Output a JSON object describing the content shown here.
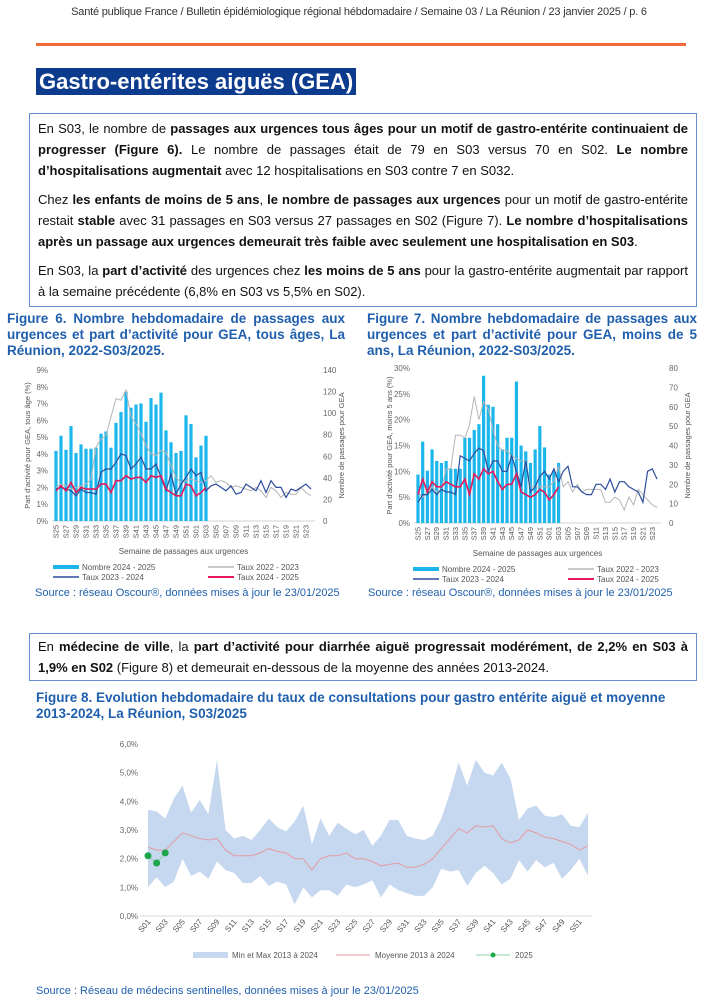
{
  "header": "Santé publique France / Bulletin épidémiologique régional hébdomadaire / Semaine 03 / La Réunion / 23 janvier 2025 / p. 6",
  "colors": {
    "accent_rule": "#F26B3A",
    "title_bg": "#0D3C8E",
    "figure_title": "#1F5FAD",
    "bars": "#1AB6EC",
    "taux_2022_2023": "#B5B5B5",
    "taux_2023_2024": "#2C4C9C",
    "taux_2024_2025": "#E5195A",
    "band": "#C5D8F0",
    "mean": "#E59AA2",
    "points_2025": "#1DA64A"
  },
  "section_title": "Gastro-entérites aiguës (GEA)",
  "summary": [
    [
      {
        "t": "En S03, le nombre de "
      },
      {
        "t": "passages aux urgences tous âges pour un motif de gastro-entérite continuaient de progresser (Figure 6).",
        "b": true
      },
      {
        "t": " Le nombre de passages était de 79 en S03 versus 70 en S02. "
      },
      {
        "t": "Le nombre d’hospitalisations augmentait",
        "b": true
      },
      {
        "t": " avec 12 hospitalisations en S03 contre 7 en S032."
      }
    ],
    [
      {
        "t": "Chez "
      },
      {
        "t": "les enfants de moins de 5 ans",
        "b": true
      },
      {
        "t": ", "
      },
      {
        "t": "le nombre de passages aux urgences",
        "b": true
      },
      {
        "t": " pour un motif de gastro-entérite restait "
      },
      {
        "t": "stable",
        "b": true
      },
      {
        "t": " avec 31 passages en S03 versus 27 passages en S02 (Figure 7). "
      },
      {
        "t": "Le nombre d’hospitalisations après un passage aux urgences demeurait très faible avec seulement une hospitalisation en S03",
        "b": true
      },
      {
        "t": "."
      }
    ],
    [
      {
        "t": "En S03, la "
      },
      {
        "t": "part d’activité",
        "b": true
      },
      {
        "t": " des urgences chez "
      },
      {
        "t": "les moins de 5 ans",
        "b": true
      },
      {
        "t": " pour la gastro-entérite augmentait par rapport à la semaine précédente (6,8% en S03 vs 5,5% en S02)."
      }
    ]
  ],
  "ville": [
    [
      {
        "t": "En "
      },
      {
        "t": "médecine de ville",
        "b": true
      },
      {
        "t": ", la "
      },
      {
        "t": "part d’activité pour diarrhée aiguë progressait modérément, de 2,2% en S03 à 1,9% en S02",
        "b": true
      },
      {
        "t": " (Figure 8) et demeurait en-dessous de la moyenne des années 2013-2024."
      }
    ]
  ],
  "fig6": {
    "title": "Figure 6. Nombre hebdomadaire de passages aux urgences et part d’activité pour GEA, tous âges, La Réunion, 2022-S03/2025.",
    "source": "Source : réseau Oscour®, données mises à jour le 23/01/2025"
  },
  "fig7": {
    "title": "Figure 7. Nombre hebdomadaire de passages aux urgences et part d’activité pour GEA, moins de 5 ans, La Réunion, 2022-S03/2025.",
    "source": "Source : réseau Oscour®, données mises à jour le 23/01/2025"
  },
  "fig8": {
    "title": "Figure 8. Evolution hebdomadaire du taux de consultations pour gastro entérite aiguë et moyenne 2013-2024, La Réunion, S03/2025",
    "source": "Source : Réseau de médecins sentinelles, données mises à jour le 23/01/2025"
  },
  "chart_data": [
    {
      "type": "bar+line",
      "weeks": [
        "S25",
        "S26",
        "S27",
        "S28",
        "S29",
        "S30",
        "S31",
        "S32",
        "S33",
        "S34",
        "S35",
        "S36",
        "S37",
        "S38",
        "S39",
        "S40",
        "S41",
        "S42",
        "S43",
        "S44",
        "S45",
        "S46",
        "S47",
        "S48",
        "S49",
        "S50",
        "S51",
        "S52",
        "S01",
        "S02",
        "S03",
        "S04",
        "S05",
        "S06",
        "S07",
        "S08",
        "S09",
        "S10",
        "S11",
        "S12",
        "S13",
        "S14",
        "S15",
        "S16",
        "S17",
        "S18",
        "S19",
        "S20",
        "S21",
        "S22",
        "S23",
        "S24"
      ],
      "xlabel": "Semaine de passages aux urgences",
      "ylabel": "Part d'activité pour GEA, tous âge (%)",
      "y2label": "Nombre de passages pour GEA",
      "ylim": [
        0,
        9
      ],
      "yticks": [
        "0%",
        "1%",
        "2%",
        "3%",
        "4%",
        "5%",
        "6%",
        "7%",
        "8%",
        "9%"
      ],
      "y2lim": [
        0,
        140
      ],
      "y2ticks": [
        "0",
        "20",
        "40",
        "60",
        "80",
        "100",
        "120",
        "140"
      ],
      "bars": {
        "name": "Nombre 2024 - 2025",
        "values": [
          65,
          79,
          66,
          88,
          63,
          71,
          67,
          67,
          68,
          81,
          83,
          68,
          91,
          101,
          120,
          105,
          108,
          109,
          92,
          114,
          108,
          119,
          84,
          73,
          63,
          65,
          98,
          90,
          59,
          70,
          79
        ]
      },
      "series": [
        {
          "name": "Taux 2022 - 2023",
          "values": [
            2.0,
            2.2,
            2.1,
            1.9,
            2.0,
            2.1,
            2.2,
            2.5,
            4.4,
            4.9,
            5.1,
            6.2,
            7.3,
            7.2,
            7.8,
            6.2,
            5.8,
            5.2,
            4.5,
            4.0,
            3.9,
            4.2,
            4.1,
            3.3,
            2.6,
            2.3,
            2.4,
            2.5,
            2.4,
            2.3,
            2.4,
            2.7,
            2.3,
            2.4,
            2.3,
            2.0,
            2.1,
            2.0,
            1.9,
            1.8,
            2.0,
            1.8,
            1.4,
            2.0,
            1.8,
            1.4,
            1.7,
            1.6,
            1.6,
            2.0,
            1.7,
            1.5
          ]
        },
        {
          "name": "Taux 2023 - 2024",
          "values": [
            1.9,
            2.0,
            1.9,
            1.8,
            1.5,
            1.9,
            1.7,
            1.7,
            1.6,
            2.9,
            3.1,
            3.1,
            3.5,
            4.0,
            3.9,
            3.1,
            3.4,
            3.8,
            3.1,
            3.1,
            3.4,
            2.6,
            1.8,
            2.8,
            1.6,
            2.2,
            2.6,
            3.1,
            2.7,
            2.9,
            1.8,
            2.1,
            2.2,
            2.0,
            1.8,
            2.1,
            1.6,
            1.7,
            2.2,
            2.0,
            1.8,
            2.4,
            1.7,
            2.4,
            2.0,
            2.0,
            1.4,
            1.9,
            1.8,
            2.0,
            2.2,
            1.9
          ]
        },
        {
          "name": "Taux 2024 - 2025",
          "values": [
            1.8,
            2.1,
            1.8,
            2.3,
            1.7,
            2.0,
            1.9,
            1.9,
            1.9,
            2.2,
            2.2,
            1.7,
            2.4,
            2.4,
            2.7,
            2.5,
            2.6,
            2.6,
            2.3,
            2.7,
            2.6,
            2.7,
            1.9,
            1.7,
            1.5,
            1.5,
            2.2,
            2.1,
            1.5,
            1.7,
            2.0
          ]
        }
      ]
    },
    {
      "type": "bar+line",
      "weeks": [
        "S25",
        "S26",
        "S27",
        "S28",
        "S29",
        "S30",
        "S31",
        "S32",
        "S33",
        "S34",
        "S35",
        "S36",
        "S37",
        "S38",
        "S39",
        "S40",
        "S41",
        "S42",
        "S43",
        "S44",
        "S45",
        "S46",
        "S47",
        "S48",
        "S49",
        "S50",
        "S51",
        "S52",
        "S01",
        "S02",
        "S03",
        "S04",
        "S05",
        "S06",
        "S07",
        "S08",
        "S09",
        "S10",
        "S11",
        "S12",
        "S13",
        "S14",
        "S15",
        "S16",
        "S17",
        "S18",
        "S19",
        "S20",
        "S21",
        "S22",
        "S23",
        "S24"
      ],
      "xlabel": "Semaine de passages aux urgences",
      "ylabel": "Part d'activité pour GEA, moins 5 ans (%)",
      "y2label": "Nombre de passages pour GEA",
      "ylim": [
        0,
        30
      ],
      "yticks": [
        "0%",
        "5%",
        "10%",
        "15%",
        "20%",
        "25%",
        "30%"
      ],
      "y2lim": [
        0,
        80
      ],
      "y2ticks": [
        "0",
        "10",
        "20",
        "30",
        "40",
        "50",
        "60",
        "70",
        "80"
      ],
      "bars": {
        "name": "Nombre 2024 - 2025",
        "values": [
          25,
          42,
          27,
          38,
          32,
          31,
          32,
          28,
          28,
          28,
          44,
          44,
          48,
          51,
          76,
          61,
          60,
          51,
          38,
          44,
          44,
          73,
          40,
          37,
          31,
          38,
          50,
          39,
          25,
          27,
          31
        ]
      },
      "series": [
        {
          "name": "Taux 2022 - 2023",
          "values": [
            6,
            5,
            6,
            7,
            6,
            6.5,
            10.5,
            10.5,
            17,
            17,
            16.5,
            19,
            24.5,
            20,
            23.5,
            22,
            18,
            15,
            14,
            14,
            13,
            12.5,
            12,
            12,
            7,
            7,
            7,
            7,
            7,
            8,
            11,
            7,
            8,
            6,
            7.5,
            6,
            6.5,
            6.5,
            6.5,
            6.5,
            4,
            4,
            5,
            4.5,
            2.5,
            5,
            3.5,
            6.5,
            5.5,
            4.5,
            3.5,
            3
          ]
        },
        {
          "name": "Taux 2023 - 2024",
          "values": [
            4,
            5.5,
            5.5,
            6.5,
            5.5,
            6.5,
            6,
            6,
            5.5,
            13,
            12.5,
            12,
            13.5,
            14.5,
            14,
            10,
            12,
            12,
            10,
            10,
            13,
            10,
            7,
            12,
            6,
            7,
            9,
            10,
            8.5,
            10.5,
            8,
            10,
            11,
            7,
            7,
            6,
            5.5,
            5.5,
            7.5,
            7.5,
            6.5,
            8.5,
            6,
            8,
            8,
            7,
            6.5,
            6,
            4,
            10,
            10.5,
            8.5
          ]
        },
        {
          "name": "Taux 2024 - 2025",
          "values": [
            5.5,
            8.5,
            6,
            8,
            7,
            7,
            8,
            7.5,
            7,
            7,
            8.5,
            5.5,
            9.5,
            8.5,
            10.5,
            9.5,
            10,
            8,
            6.5,
            7.5,
            7.5,
            9.5,
            6,
            5.5,
            5,
            5.5,
            6.5,
            6,
            4.5,
            5.5,
            7
          ]
        }
      ]
    },
    {
      "type": "area+line",
      "weeks": [
        "S01",
        "S02",
        "S03",
        "S04",
        "S05",
        "S06",
        "S07",
        "S08",
        "S09",
        "S10",
        "S11",
        "S12",
        "S13",
        "S14",
        "S15",
        "S16",
        "S17",
        "S18",
        "S19",
        "S20",
        "S21",
        "S22",
        "S23",
        "S24",
        "S25",
        "S26",
        "S27",
        "S28",
        "S29",
        "S30",
        "S31",
        "S32",
        "S33",
        "S34",
        "S35",
        "S36",
        "S37",
        "S38",
        "S39",
        "S40",
        "S41",
        "S42",
        "S43",
        "S44",
        "S45",
        "S46",
        "S47",
        "S48",
        "S49",
        "S50",
        "S51",
        "S52"
      ],
      "ylim": [
        0,
        6
      ],
      "yticks": [
        "0,0%",
        "1,0%",
        "2,0%",
        "3,0%",
        "4,0%",
        "5,0%",
        "6,0%"
      ],
      "band": {
        "name": "Min et Max 2013 à 2024",
        "max": [
          3.7,
          3.65,
          3.4,
          4.1,
          4.55,
          3.6,
          4.05,
          3.55,
          5.45,
          3.0,
          2.7,
          2.8,
          2.65,
          3.0,
          3.4,
          3.1,
          2.95,
          3.3,
          3.85,
          2.5,
          3.4,
          2.8,
          3.25,
          3.05,
          2.85,
          3.0,
          2.45,
          2.8,
          3.35,
          3.35,
          2.8,
          2.7,
          2.65,
          2.8,
          3.4,
          4.3,
          5.35,
          4.55,
          5.45,
          5.0,
          4.9,
          5.35,
          4.8,
          3.35,
          3.75,
          3.85,
          3.5,
          3.45,
          3.55,
          3.15,
          3.1,
          3.6
        ],
        "min": [
          1.0,
          1.35,
          1.0,
          1.2,
          2.0,
          1.4,
          1.55,
          1.3,
          1.9,
          1.6,
          1.5,
          1.15,
          1.15,
          1.4,
          1.05,
          1.2,
          1.1,
          0.4,
          1.0,
          0.65,
          0.9,
          0.9,
          0.7,
          1.1,
          1.0,
          1.1,
          1.25,
          0.65,
          1.1,
          0.9,
          0.8,
          0.7,
          0.7,
          1.0,
          1.65,
          1.55,
          1.6,
          1.05,
          1.5,
          1.75,
          1.5,
          1.1,
          1.3,
          1.95,
          1.55,
          1.95,
          1.7,
          1.85,
          1.3,
          1.6,
          2.0,
          1.4
        ]
      },
      "series": [
        {
          "name": "Moyenne 2013 à 2024",
          "values": [
            2.4,
            2.3,
            2.3,
            2.6,
            2.9,
            2.8,
            2.7,
            2.65,
            2.7,
            2.3,
            2.1,
            2.1,
            2.1,
            2.2,
            2.35,
            2.25,
            2.2,
            2.0,
            2.0,
            1.6,
            2.0,
            2.1,
            2.1,
            2.2,
            2.0,
            2.0,
            1.9,
            1.75,
            1.8,
            1.85,
            1.7,
            1.7,
            1.8,
            2.0,
            2.35,
            2.7,
            3.05,
            2.9,
            3.15,
            3.1,
            3.15,
            2.7,
            2.55,
            2.65,
            3.0,
            2.9,
            2.75,
            2.7,
            2.6,
            2.5,
            2.3,
            2.45
          ]
        },
        {
          "name": "2025",
          "values": [
            2.1,
            1.85,
            2.2
          ]
        }
      ],
      "legend": "bottom"
    }
  ]
}
